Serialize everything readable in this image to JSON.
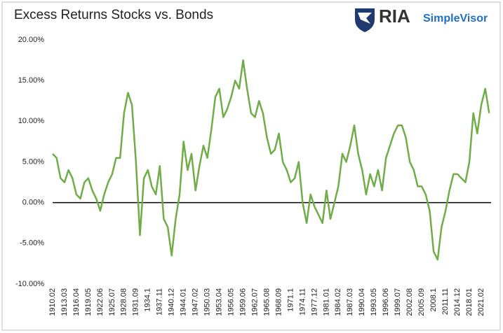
{
  "header": {
    "brand": "RIA",
    "product": "SimpleVisor"
  },
  "chart_data": {
    "type": "line",
    "title": "Excess Returns Stocks vs. Bonds",
    "categories": [
      "1910.02",
      null,
      null,
      "1913.03",
      null,
      null,
      "1916.04",
      null,
      null,
      "1919.05",
      null,
      null,
      "1922.06",
      null,
      null,
      "1925.07",
      null,
      null,
      "1928.08",
      null,
      null,
      "1931.09",
      null,
      null,
      "1934.1",
      null,
      null,
      "1937.11",
      null,
      null,
      "1940.12",
      null,
      null,
      "1944.01",
      null,
      null,
      "1947.02",
      null,
      null,
      "1950.03",
      null,
      null,
      "1953.04",
      null,
      null,
      "1956.05",
      null,
      null,
      "1959.06",
      null,
      null,
      "1962.07",
      null,
      null,
      "1965.08",
      null,
      null,
      "1968.09",
      null,
      null,
      "1971.1",
      null,
      null,
      "1974.11",
      null,
      null,
      "1977.12",
      null,
      null,
      "1981.01",
      null,
      null,
      "1984.02",
      null,
      null,
      "1987.03",
      null,
      null,
      "1990.04",
      null,
      null,
      "1993.05",
      null,
      null,
      "1996.06",
      null,
      null,
      "1999.07",
      null,
      null,
      "2002.08",
      null,
      null,
      "2005.09",
      null,
      null,
      "2008.1",
      null,
      null,
      "2011.11",
      null,
      null,
      "2014.12",
      null,
      null,
      "2018.01",
      null,
      null,
      "2021.02",
      null,
      null
    ],
    "series": [
      {
        "name": "Excess Returns",
        "color": "#70ad47",
        "values": [
          6,
          5.5,
          3,
          2.5,
          4,
          3,
          1,
          0.5,
          2.5,
          3,
          1.5,
          0.5,
          -1,
          1,
          2.5,
          3.5,
          5.5,
          5.5,
          11,
          13.5,
          12,
          5,
          -4,
          3,
          4,
          2,
          1,
          4.5,
          -2,
          -3,
          -6.5,
          -2,
          1,
          7.5,
          4,
          6,
          1.5,
          4.5,
          7,
          5.5,
          9,
          13,
          14,
          10.5,
          11.5,
          13,
          15,
          14,
          17.5,
          14,
          11,
          10.5,
          12.5,
          11,
          8,
          6,
          6.5,
          8.5,
          5,
          4,
          2.5,
          3,
          5,
          0,
          -2.5,
          1,
          -0.5,
          -1.5,
          -2.5,
          1.5,
          -2,
          0,
          2,
          6,
          5,
          7,
          9.5,
          6,
          4,
          1,
          3.5,
          2,
          4,
          1.5,
          5.5,
          7,
          8.5,
          9.5,
          9.5,
          8,
          5,
          4,
          2,
          2,
          1,
          -1,
          -6,
          -7,
          -3,
          -1,
          1.5,
          3.5,
          3.5,
          3,
          2.5,
          5,
          11,
          8.5,
          12,
          14,
          11
        ]
      }
    ],
    "ylim": [
      -10,
      20
    ],
    "yticks": [
      {
        "value": -10,
        "label": "-10.00%"
      },
      {
        "value": -5,
        "label": "-5.00%"
      },
      {
        "value": 0,
        "label": "0.00%"
      },
      {
        "value": 5,
        "label": "5.00%"
      },
      {
        "value": 10,
        "label": "10.00%"
      },
      {
        "value": 15,
        "label": "15.00%"
      },
      {
        "value": 20,
        "label": "20.00%"
      }
    ]
  }
}
